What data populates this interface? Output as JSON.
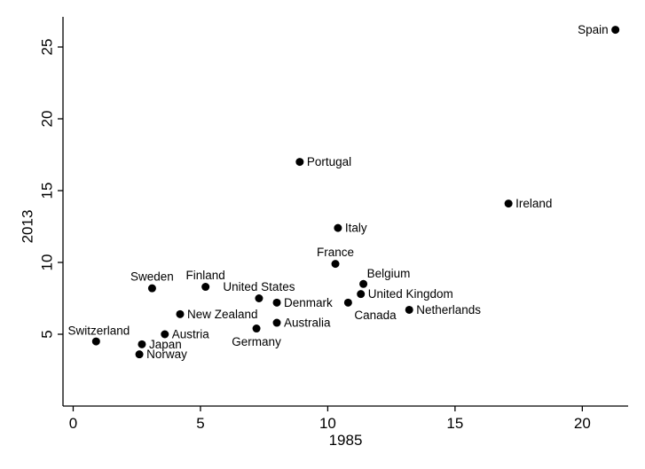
{
  "chart_data": {
    "type": "scatter",
    "title": "",
    "xlabel": "1985",
    "ylabel": "2013",
    "xlim": [
      -0.4,
      21.8
    ],
    "ylim": [
      0,
      27.1
    ],
    "xticks": [
      0,
      5,
      10,
      15,
      20
    ],
    "yticks": [
      5,
      10,
      15,
      20,
      25
    ],
    "grid": false,
    "legend": "none",
    "marker_color": "#000000",
    "points": [
      {
        "label": "Spain",
        "x": 21.3,
        "y": 26.2
      },
      {
        "label": "Portugal",
        "x": 8.9,
        "y": 17.0
      },
      {
        "label": "Ireland",
        "x": 17.1,
        "y": 14.1
      },
      {
        "label": "Italy",
        "x": 10.4,
        "y": 12.4
      },
      {
        "label": "France",
        "x": 10.3,
        "y": 9.9
      },
      {
        "label": "Belgium",
        "x": 11.4,
        "y": 8.5
      },
      {
        "label": "United Kingdom",
        "x": 11.3,
        "y": 7.8
      },
      {
        "label": "Canada",
        "x": 10.8,
        "y": 7.2
      },
      {
        "label": "Netherlands",
        "x": 13.2,
        "y": 6.7
      },
      {
        "label": "Sweden",
        "x": 3.1,
        "y": 8.2
      },
      {
        "label": "Finland",
        "x": 5.2,
        "y": 8.3
      },
      {
        "label": "United States",
        "x": 7.3,
        "y": 7.5
      },
      {
        "label": "Denmark",
        "x": 8.0,
        "y": 7.2
      },
      {
        "label": "New Zealand",
        "x": 4.2,
        "y": 6.4
      },
      {
        "label": "Australia",
        "x": 8.0,
        "y": 5.8
      },
      {
        "label": "Germany",
        "x": 7.2,
        "y": 5.4
      },
      {
        "label": "Switzerland",
        "x": 0.9,
        "y": 4.5
      },
      {
        "label": "Austria",
        "x": 3.6,
        "y": 5.0
      },
      {
        "label": "Japan",
        "x": 2.7,
        "y": 4.3
      },
      {
        "label": "Norway",
        "x": 2.6,
        "y": 3.6
      }
    ]
  }
}
